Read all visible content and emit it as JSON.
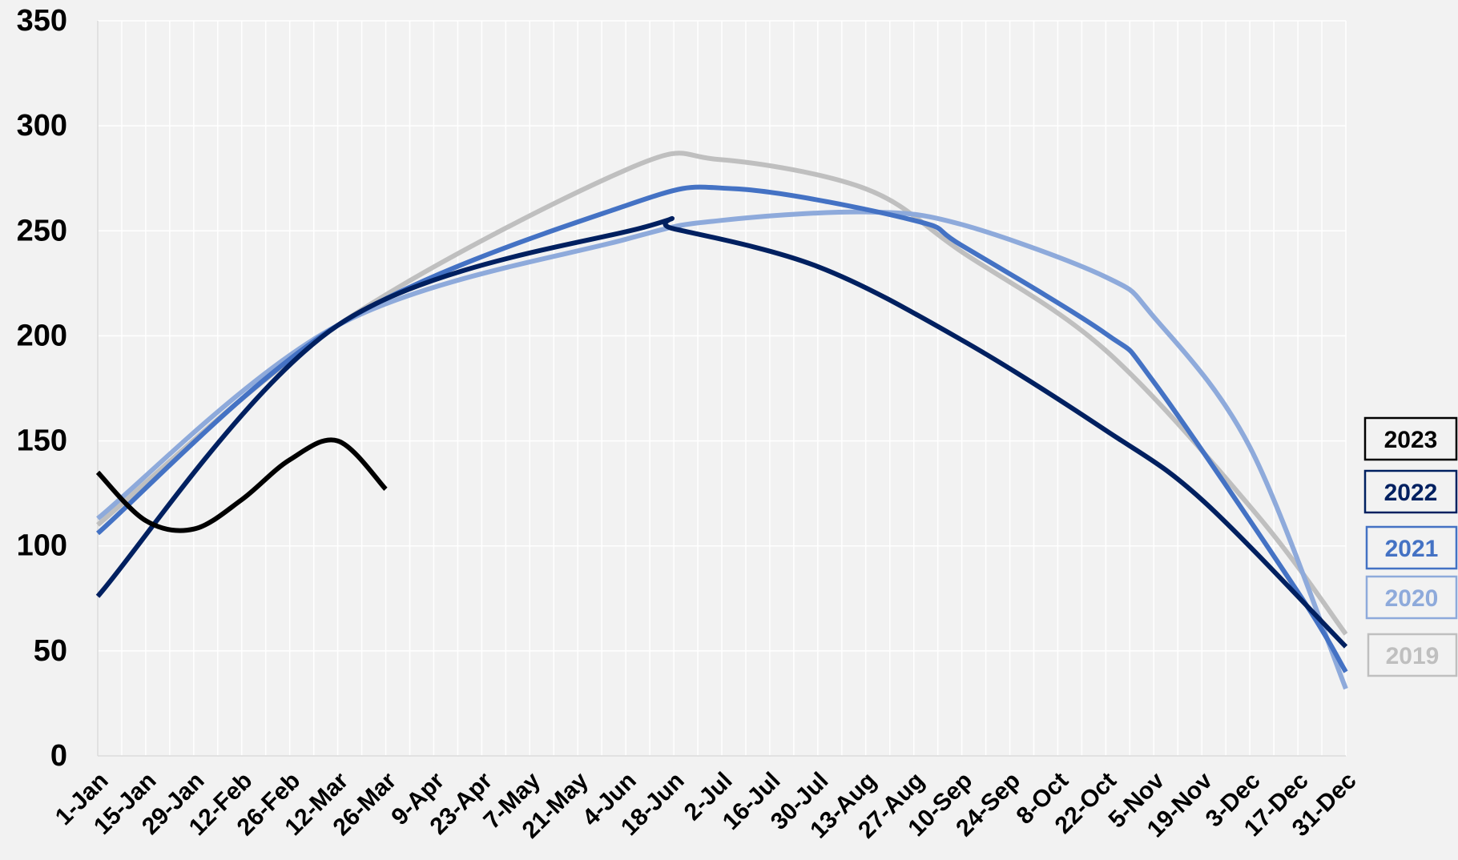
{
  "chart_data": {
    "type": "line",
    "title": "",
    "xlabel": "",
    "ylabel": "",
    "ylim": [
      0,
      350
    ],
    "yticks": [
      0,
      50,
      100,
      150,
      200,
      250,
      300,
      350
    ],
    "xlim_days": [
      1,
      365
    ],
    "x_tick_labels": [
      "1-Jan",
      "15-Jan",
      "29-Jan",
      "12-Feb",
      "26-Feb",
      "12-Mar",
      "26-Mar",
      "9-Apr",
      "23-Apr",
      "7-May",
      "21-May",
      "4-Jun",
      "18-Jun",
      "2-Jul",
      "16-Jul",
      "30-Jul",
      "13-Aug",
      "27-Aug",
      "10-Sep",
      "24-Sep",
      "8-Oct",
      "22-Oct",
      "5-Nov",
      "19-Nov",
      "3-Dec",
      "17-Dec",
      "31-Dec"
    ],
    "grid": true,
    "legend_position": "right",
    "series": [
      {
        "name": "2019",
        "color": "#bfbfbf",
        "x": [
          "1-Jan",
          "12-Mar",
          "4-Jun",
          "1-Jul",
          "13-Aug",
          "10-Sep",
          "22-Oct",
          "5-Dec",
          "31-Dec"
        ],
        "values": [
          110,
          205,
          279,
          284,
          270,
          240,
          193,
          115,
          58
        ]
      },
      {
        "name": "2020",
        "color": "#8eaadb",
        "x": [
          "1-Jan",
          "12-Mar",
          "4-Jun",
          "2-Jul",
          "14-Aug",
          "10-Sep",
          "22-Oct",
          "5-Nov",
          "3-Dec",
          "31-Dec"
        ],
        "values": [
          113,
          205,
          246,
          255,
          259,
          253,
          228,
          209,
          147,
          32
        ]
      },
      {
        "name": "2021",
        "color": "#4472c4",
        "x": [
          "1-Jan",
          "12-Mar",
          "4-Jun",
          "6-Jul",
          "27-Aug",
          "10-Sep",
          "22-Oct",
          "5-Nov",
          "17-Dec",
          "31-Dec"
        ],
        "values": [
          106,
          205,
          262,
          270,
          255,
          243,
          201,
          178,
          78,
          40
        ]
      },
      {
        "name": "2022",
        "color": "#002060",
        "x": [
          "1-Jan",
          "12-Mar",
          "10-Jun",
          "18-Jun",
          "30-Jul",
          "10-Sep",
          "22-Oct",
          "19-Nov",
          "31-Dec"
        ],
        "values": [
          76,
          205,
          252,
          251,
          233,
          198,
          155,
          122,
          52
        ]
      },
      {
        "name": "2023",
        "color": "#000000",
        "x": [
          "1-Jan",
          "15-Jan",
          "29-Jan",
          "12-Feb",
          "26-Feb",
          "12-Mar",
          "26-Mar"
        ],
        "values": [
          135,
          112,
          108,
          122,
          141,
          150,
          127
        ]
      }
    ]
  }
}
